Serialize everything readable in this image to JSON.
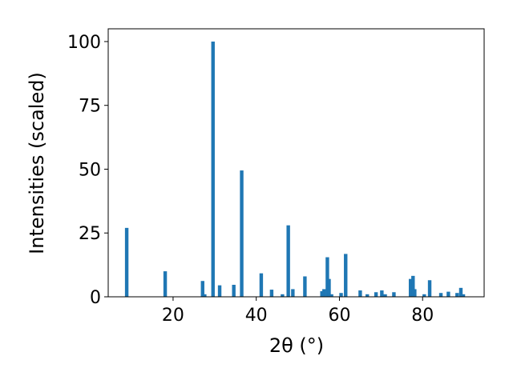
{
  "chart_data": {
    "type": "bar",
    "x_label": "2θ (°)",
    "y_label": "Intensities (scaled)",
    "x": [
      8.85,
      18.1,
      27.1,
      27.6,
      29.6,
      31.2,
      34.6,
      36.5,
      41.2,
      43.7,
      46.3,
      47.7,
      48.8,
      51.7,
      55.8,
      56.3,
      57.1,
      57.5,
      58.1,
      60.4,
      61.5,
      65.0,
      66.7,
      68.8,
      70.2,
      71.0,
      73.1,
      77.1,
      77.7,
      78.1,
      80.4,
      81.7,
      84.4,
      86.2,
      88.3,
      89.2,
      89.8
    ],
    "values": [
      27,
      10,
      6.2,
      1,
      100,
      4.5,
      4.7,
      49.5,
      9.2,
      2.8,
      1,
      28,
      3,
      8,
      2.2,
      3,
      15.5,
      7,
      1,
      1.5,
      16.8,
      2.5,
      1,
      1.8,
      2.5,
      1,
      1.8,
      7,
      8.2,
      3,
      1,
      6.5,
      1.5,
      2,
      1.5,
      3.5,
      1
    ],
    "color": "#1f77b4",
    "xlim": [
      4.4,
      94.8
    ],
    "ylim": [
      0,
      105
    ],
    "xticks": [
      20,
      40,
      60,
      80
    ],
    "yticks": [
      0,
      25,
      50,
      75,
      100
    ]
  }
}
